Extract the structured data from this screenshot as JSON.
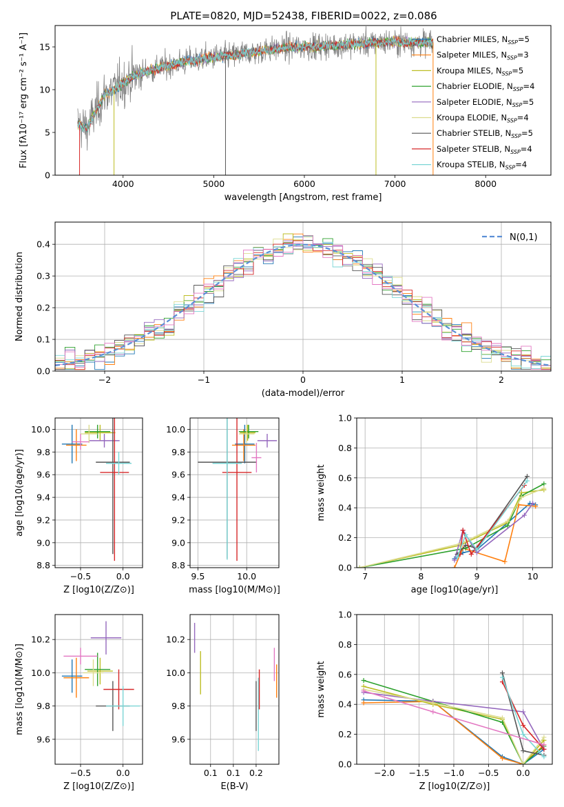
{
  "title": "PLATE=0820, MJD=52438, FIBERID=0022, z=0.086",
  "colors": {
    "chabrier_miles": "#1f77b4",
    "salpeter_miles": "#ff7f0e",
    "kroupa_miles": "#bcbd22",
    "chabrier_elodie": "#2ca02c",
    "salpeter_elodie": "#9467bd",
    "kroupa_elodie": "#dbdb8d",
    "chabrier_stelib": "#555555",
    "salpeter_stelib": "#d62728",
    "kroupa_stelib": "#7ad5d5",
    "normal": "#5b8fd6",
    "extra_pink": "#e377c2",
    "grid": "#b0b0b0"
  },
  "chart_data": [
    {
      "id": "spectrum",
      "type": "line",
      "title": "PLATE=0820, MJD=52438, FIBERID=0022, z=0.086",
      "xlabel": "wavelength [Angstrom, rest frame]",
      "ylabel": "Flux [fλ10⁻¹⁷ erg cm⁻² s⁻¹ A⁻¹]",
      "xlim": [
        3250,
        8720
      ],
      "ylim": [
        0,
        17.5
      ],
      "xticks": [
        4000,
        5000,
        6000,
        7000,
        8000
      ],
      "yticks": [
        0,
        5,
        10,
        15
      ],
      "grid": false,
      "legend_position": "right",
      "continuum": {
        "x": [
          3500,
          3600,
          3700,
          3800,
          3900,
          4000,
          4100,
          4300,
          4500,
          4700,
          5000,
          5200,
          5500,
          5800,
          6000,
          6200,
          6500,
          6800,
          7000,
          7200,
          7400
        ],
        "y": [
          6.0,
          5.5,
          7.5,
          9.5,
          10.0,
          10.8,
          11.5,
          12.3,
          12.8,
          13.3,
          13.8,
          14.0,
          14.5,
          14.9,
          15.0,
          15.1,
          15.3,
          15.5,
          15.6,
          15.5,
          15.5
        ]
      },
      "series": [
        {
          "label": "Chabrier MILES, N",
          "sub": "SSP",
          "suffix": "=5",
          "color_key": "chabrier_miles"
        },
        {
          "label": "Salpeter MILES, N",
          "sub": "SSP",
          "suffix": "=3",
          "color_key": "salpeter_miles"
        },
        {
          "label": "Kroupa MILES, N",
          "sub": "SSP",
          "suffix": "=5",
          "color_key": "kroupa_miles"
        },
        {
          "label": "Chabrier ELODIE, N",
          "sub": "SSP",
          "suffix": "=4",
          "color_key": "chabrier_elodie"
        },
        {
          "label": "Salpeter ELODIE, N",
          "sub": "SSP",
          "suffix": "=5",
          "color_key": "salpeter_elodie"
        },
        {
          "label": "Kroupa ELODIE, N",
          "sub": "SSP",
          "suffix": "=4",
          "color_key": "kroupa_elodie"
        },
        {
          "label": "Chabrier STELIB, N",
          "sub": "SSP",
          "suffix": "=5",
          "color_key": "chabrier_stelib"
        },
        {
          "label": "Salpeter STELIB, N",
          "sub": "SSP",
          "suffix": "=4",
          "color_key": "salpeter_stelib"
        },
        {
          "label": "Kroupa STELIB, N",
          "sub": "SSP",
          "suffix": "=4",
          "color_key": "kroupa_stelib"
        }
      ]
    },
    {
      "id": "residuals",
      "type": "line",
      "xlabel": "(data-model)/error",
      "ylabel": "Normed distribution",
      "xlim": [
        -2.5,
        2.5
      ],
      "ylim": [
        0,
        0.47
      ],
      "xticks": [
        -2,
        -1,
        0,
        1,
        2
      ],
      "yticks": [
        0.0,
        0.1,
        0.2,
        0.3,
        0.4
      ],
      "grid": true,
      "legend_position": "top-right",
      "legend_label": "N(0,1)",
      "bins": 50
    },
    {
      "id": "age_vs_z",
      "type": "scatter",
      "xlabel": "Z [log10(Z/Z⊙)]",
      "ylabel": "age  [log10(age/yr)]",
      "xlim": [
        -0.8,
        0.23
      ],
      "ylim": [
        8.78,
        10.1
      ],
      "xticks": [
        -0.5,
        0.0
      ],
      "yticks": [
        8.8,
        9.0,
        9.2,
        9.4,
        9.6,
        9.8,
        10.0
      ],
      "grid": true,
      "points": [
        {
          "c": "chabrier_miles",
          "x": -0.6,
          "xe": 0.12,
          "y": 9.87,
          "ye": 0.17
        },
        {
          "c": "salpeter_miles",
          "x": -0.55,
          "xe": 0.12,
          "y": 9.86,
          "ye": 0.14
        },
        {
          "c": "kroupa_miles",
          "x": -0.27,
          "xe": 0.18,
          "y": 9.97,
          "ye": 0.07
        },
        {
          "c": "chabrier_elodie",
          "x": -0.3,
          "xe": 0.15,
          "y": 9.98,
          "ye": 0.06
        },
        {
          "c": "salpeter_elodie",
          "x": -0.22,
          "xe": 0.18,
          "y": 9.9,
          "ye": 0.06
        },
        {
          "c": "kroupa_elodie",
          "x": -0.4,
          "xe": 0.1,
          "y": 9.96,
          "ye": 0.08
        },
        {
          "c": "chabrier_stelib",
          "x": -0.12,
          "xe": 0.2,
          "y": 9.71,
          "ye": 0.81
        },
        {
          "c": "salpeter_stelib",
          "x": -0.1,
          "xe": 0.17,
          "y": 9.62,
          "ye": 0.78
        },
        {
          "c": "kroupa_stelib",
          "x": -0.05,
          "xe": 0.15,
          "y": 9.7,
          "ye": 0.1
        },
        {
          "c": "extra_pink",
          "x": -0.5,
          "xe": 0.1,
          "y": 9.89,
          "ye": 0.07
        }
      ]
    },
    {
      "id": "age_vs_mass",
      "type": "scatter",
      "xlabel": "mass [log10(M/M⊙)]",
      "ylabel": "",
      "xlim": [
        9.42,
        10.33
      ],
      "ylim": [
        8.78,
        10.1
      ],
      "xticks": [
        9.5,
        10.0
      ],
      "yticks": [
        8.8,
        9.0,
        9.2,
        9.4,
        9.6,
        9.8,
        10.0
      ],
      "grid": true,
      "points": [
        {
          "c": "chabrier_miles",
          "x": 9.98,
          "xe": 0.1,
          "y": 9.87,
          "ye": 0.17
        },
        {
          "c": "salpeter_miles",
          "x": 9.97,
          "xe": 0.12,
          "y": 9.86,
          "ye": 0.14
        },
        {
          "c": "kroupa_miles",
          "x": 10.01,
          "xe": 0.08,
          "y": 9.97,
          "ye": 0.07
        },
        {
          "c": "chabrier_elodie",
          "x": 10.02,
          "xe": 0.1,
          "y": 9.98,
          "ye": 0.06
        },
        {
          "c": "salpeter_elodie",
          "x": 10.21,
          "xe": 0.1,
          "y": 9.9,
          "ye": 0.06
        },
        {
          "c": "kroupa_elodie",
          "x": 10.0,
          "xe": 0.08,
          "y": 9.96,
          "ye": 0.08
        },
        {
          "c": "chabrier_stelib",
          "x": 9.8,
          "xe": 0.3,
          "y": 9.71,
          "ye": 0.85
        },
        {
          "c": "salpeter_stelib",
          "x": 9.9,
          "xe": 0.15,
          "y": 9.62,
          "ye": 0.78
        },
        {
          "c": "kroupa_stelib",
          "x": 9.8,
          "xe": 0.15,
          "y": 9.7,
          "ye": 0.85
        },
        {
          "c": "extra_pink",
          "x": 10.1,
          "xe": 0.05,
          "y": 9.75,
          "ye": 0.13
        }
      ]
    },
    {
      "id": "weight_vs_age",
      "type": "line",
      "xlabel": "age  [log10(age/yr)]",
      "ylabel": "mass weight",
      "xlim": [
        6.85,
        10.35
      ],
      "ylim": [
        0,
        1.0
      ],
      "xticks": [
        7,
        8,
        9,
        10
      ],
      "yticks": [
        0.0,
        0.2,
        0.4,
        0.6,
        0.8,
        1.0
      ],
      "grid": true,
      "series": [
        {
          "c": "chabrier_miles",
          "x": [
            8.6,
            8.75,
            9.0,
            9.95,
            10.05
          ],
          "y": [
            0.06,
            0.1,
            0.12,
            0.43,
            0.42
          ]
        },
        {
          "c": "salpeter_miles",
          "x": [
            8.6,
            8.75,
            9.5,
            9.75,
            10.05
          ],
          "y": [
            0.0,
            0.13,
            0.04,
            0.42,
            0.41
          ]
        },
        {
          "c": "kroupa_miles",
          "x": [
            6.9,
            8.7,
            9.55,
            9.8,
            10.2
          ],
          "y": [
            0.0,
            0.15,
            0.3,
            0.5,
            0.52
          ]
        },
        {
          "c": "chabrier_elodie",
          "x": [
            6.9,
            8.8,
            9.55,
            9.8,
            10.2
          ],
          "y": [
            0.0,
            0.13,
            0.28,
            0.48,
            0.56
          ]
        },
        {
          "c": "salpeter_elodie",
          "x": [
            8.6,
            8.75,
            9.0,
            9.85,
            10.0
          ],
          "y": [
            0.05,
            0.25,
            0.1,
            0.35,
            0.43
          ]
        },
        {
          "c": "kroupa_elodie",
          "x": [
            6.9,
            8.7,
            9.55,
            9.8,
            10.2
          ],
          "y": [
            0.0,
            0.16,
            0.31,
            0.47,
            0.53
          ]
        },
        {
          "c": "chabrier_stelib",
          "x": [
            8.65,
            8.8,
            9.0,
            9.9
          ],
          "y": [
            0.09,
            0.15,
            0.13,
            0.61
          ]
        },
        {
          "c": "salpeter_stelib",
          "x": [
            8.7,
            8.75,
            8.9,
            9.85
          ],
          "y": [
            0.09,
            0.25,
            0.09,
            0.55
          ]
        },
        {
          "c": "kroupa_stelib",
          "x": [
            8.65,
            8.8,
            9.0,
            9.9
          ],
          "y": [
            0.07,
            0.22,
            0.12,
            0.58
          ]
        }
      ]
    },
    {
      "id": "mass_vs_z",
      "type": "scatter",
      "xlabel": "Z [log10(Z/Z⊙)]",
      "ylabel": "mass [log10(M/M⊙)]",
      "xlim": [
        -0.8,
        0.23
      ],
      "ylim": [
        9.45,
        10.35
      ],
      "xticks": [
        -0.5,
        0.0
      ],
      "yticks": [
        9.6,
        9.8,
        10.0,
        10.2
      ],
      "grid": true,
      "points": [
        {
          "c": "chabrier_miles",
          "x": -0.6,
          "xe": 0.12,
          "y": 9.98,
          "ye": 0.1
        },
        {
          "c": "salpeter_miles",
          "x": -0.55,
          "xe": 0.15,
          "y": 9.97,
          "ye": 0.12
        },
        {
          "c": "kroupa_miles",
          "x": -0.27,
          "xe": 0.15,
          "y": 10.01,
          "ye": 0.08
        },
        {
          "c": "chabrier_elodie",
          "x": -0.3,
          "xe": 0.15,
          "y": 10.02,
          "ye": 0.1
        },
        {
          "c": "salpeter_elodie",
          "x": -0.2,
          "xe": 0.18,
          "y": 10.21,
          "ye": 0.1
        },
        {
          "c": "kroupa_elodie",
          "x": -0.35,
          "xe": 0.12,
          "y": 10.0,
          "ye": 0.08
        },
        {
          "c": "chabrier_stelib",
          "x": -0.12,
          "xe": 0.2,
          "y": 9.8,
          "ye": 0.15
        },
        {
          "c": "salpeter_stelib",
          "x": -0.05,
          "xe": 0.18,
          "y": 9.9,
          "ye": 0.12
        },
        {
          "c": "kroupa_stelib",
          "x": 0.0,
          "xe": 0.2,
          "y": 9.8,
          "ye": 0.12
        },
        {
          "c": "extra_pink",
          "x": -0.5,
          "xe": 0.2,
          "y": 10.1,
          "ye": 0.05
        }
      ]
    },
    {
      "id": "mass_vs_ebv",
      "type": "scatter",
      "xlabel": "E(B-V)",
      "ylabel": "",
      "xlim": [
        0.055,
        0.25
      ],
      "ylim": [
        9.45,
        10.35
      ],
      "xticks": [
        0.1,
        0.15,
        0.2
      ],
      "yticks": [
        9.6,
        9.8,
        10.0,
        10.2
      ],
      "grid": true,
      "points": [
        {
          "c": "salpeter_elodie",
          "x": 0.065,
          "y": 10.21,
          "ye": 0.09
        },
        {
          "c": "kroupa_miles",
          "x": 0.078,
          "y": 10.0,
          "ye": 0.13
        },
        {
          "c": "chabrier_stelib",
          "x": 0.2,
          "y": 9.8,
          "ye": 0.15
        },
        {
          "c": "kroupa_stelib",
          "x": 0.205,
          "y": 9.75,
          "ye": 0.22
        },
        {
          "c": "salpeter_stelib",
          "x": 0.207,
          "y": 9.9,
          "ye": 0.12
        },
        {
          "c": "extra_pink",
          "x": 0.24,
          "y": 10.05,
          "ye": 0.1
        },
        {
          "c": "salpeter_miles",
          "x": 0.245,
          "y": 9.95,
          "ye": 0.1
        }
      ]
    },
    {
      "id": "weight_vs_z",
      "type": "line",
      "xlabel": "Z [log10(Z/Z⊙)]",
      "ylabel": "mass weight",
      "xlim": [
        -2.4,
        0.42
      ],
      "ylim": [
        0,
        1.0
      ],
      "xticks": [
        -2.0,
        -1.5,
        -1.0,
        -0.5,
        0.0
      ],
      "yticks": [
        0.0,
        0.2,
        0.4,
        0.6,
        0.8,
        1.0
      ],
      "grid": true,
      "series": [
        {
          "c": "chabrier_miles",
          "x": [
            -2.3,
            -1.3,
            -0.3,
            0.0,
            0.3
          ],
          "y": [
            0.43,
            0.42,
            0.05,
            0.0,
            0.1
          ]
        },
        {
          "c": "salpeter_miles",
          "x": [
            -2.3,
            -1.3,
            -0.3,
            0.0,
            0.3
          ],
          "y": [
            0.41,
            0.42,
            0.04,
            0.0,
            0.13
          ]
        },
        {
          "c": "kroupa_miles",
          "x": [
            -2.3,
            -1.3,
            -0.3,
            0.0,
            0.3
          ],
          "y": [
            0.52,
            0.4,
            0.3,
            0.0,
            0.16
          ]
        },
        {
          "c": "chabrier_elodie",
          "x": [
            -2.3,
            -1.3,
            -0.3,
            0.0,
            0.3
          ],
          "y": [
            0.56,
            0.42,
            0.28,
            0.0,
            0.12
          ]
        },
        {
          "c": "salpeter_elodie",
          "x": [
            -2.3,
            -1.3,
            0.0,
            0.3
          ],
          "y": [
            0.48,
            0.42,
            0.35,
            0.1
          ]
        },
        {
          "c": "kroupa_elodie",
          "x": [
            -2.3,
            -1.3,
            -0.3,
            0.0,
            0.3
          ],
          "y": [
            0.5,
            0.41,
            0.31,
            0.0,
            0.18
          ]
        },
        {
          "c": "chabrier_stelib",
          "x": [
            -0.3,
            0.0,
            0.3
          ],
          "y": [
            0.61,
            0.09,
            0.06
          ]
        },
        {
          "c": "salpeter_stelib",
          "x": [
            -0.3,
            0.0,
            0.3
          ],
          "y": [
            0.55,
            0.26,
            0.1
          ]
        },
        {
          "c": "kroupa_stelib",
          "x": [
            -0.3,
            0.0,
            0.3
          ],
          "y": [
            0.58,
            0.2,
            0.05
          ]
        },
        {
          "c": "extra_pink",
          "x": [
            -2.3,
            -1.3,
            0.3
          ],
          "y": [
            0.49,
            0.35,
            0.13
          ]
        }
      ]
    }
  ]
}
